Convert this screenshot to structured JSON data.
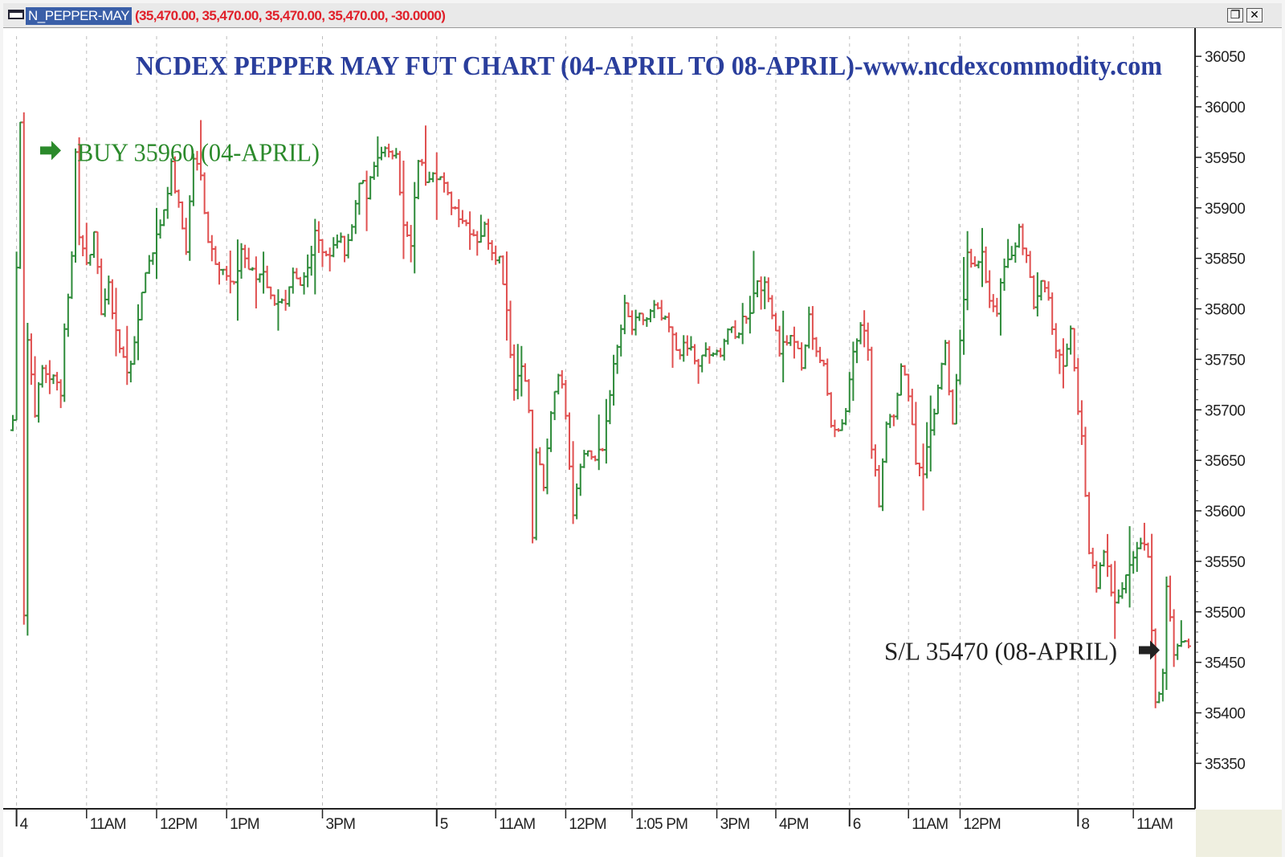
{
  "window": {
    "symbol": "N_PEPPER-MAY",
    "quote": "(35,470.00, 35,470.00, 35,470.00, 35,470.00, -30.0000)"
  },
  "colors": {
    "up": "#2e8b3a",
    "down": "#e05050",
    "title": "#2a3e9c",
    "buy": "#2b8a2b",
    "sl": "#222222",
    "grid": "#bdbdbd"
  },
  "chart_data": {
    "type": "bar",
    "title": "NCDEX PEPPER MAY FUT CHART (04-APRIL TO 08-APRIL)-www.ncdexcommodity.com",
    "y_ticks": [
      36050,
      36000,
      35950,
      35900,
      35850,
      35800,
      35750,
      35700,
      35650,
      35600,
      35550,
      35500,
      35450,
      35400,
      35350
    ],
    "ylim": [
      35305,
      36070
    ],
    "bar_count": 320,
    "x_ticks": [
      {
        "label": "4",
        "bar": 1,
        "day_sep": true
      },
      {
        "label": "11AM",
        "bar": 20,
        "day_sep": false
      },
      {
        "label": "12PM",
        "bar": 39,
        "day_sep": false
      },
      {
        "label": "1PM",
        "bar": 58,
        "day_sep": false
      },
      {
        "label": "3PM",
        "bar": 84,
        "day_sep": false
      },
      {
        "label": "5",
        "bar": 115,
        "day_sep": true
      },
      {
        "label": "11AM",
        "bar": 131,
        "day_sep": false
      },
      {
        "label": "12PM",
        "bar": 150,
        "day_sep": false
      },
      {
        "label": "1:05 PM",
        "bar": 168,
        "day_sep": false
      },
      {
        "label": "3PM",
        "bar": 191,
        "day_sep": false
      },
      {
        "label": "4PM",
        "bar": 207,
        "day_sep": false
      },
      {
        "label": "6",
        "bar": 227,
        "day_sep": true
      },
      {
        "label": "11AM",
        "bar": 243,
        "day_sep": false
      },
      {
        "label": "12PM",
        "bar": 257,
        "day_sep": false
      },
      {
        "label": "8",
        "bar": 289,
        "day_sep": true
      },
      {
        "label": "11AM",
        "bar": 304,
        "day_sep": false
      }
    ],
    "grid": true,
    "annotations": [
      {
        "text": "BUY 35960 (04-APRIL)",
        "price": 35960,
        "arrow": "right",
        "placement": "top-left"
      },
      {
        "text": "S/L 35470 (08-APRIL)",
        "price": 35470,
        "arrow": "right",
        "placement": "bottom-right"
      }
    ],
    "anchors": [
      [
        0,
        35690
      ],
      [
        2,
        35990
      ],
      [
        3,
        35500
      ],
      [
        4,
        35770
      ],
      [
        6,
        35700
      ],
      [
        8,
        35740
      ],
      [
        11,
        35730
      ],
      [
        13,
        35720
      ],
      [
        14,
        35780
      ],
      [
        16,
        35850
      ],
      [
        17,
        35960
      ],
      [
        18,
        35870
      ],
      [
        20,
        35850
      ],
      [
        22,
        35870
      ],
      [
        24,
        35800
      ],
      [
        26,
        35820
      ],
      [
        29,
        35760
      ],
      [
        31,
        35740
      ],
      [
        33,
        35760
      ],
      [
        35,
        35820
      ],
      [
        37,
        35850
      ],
      [
        39,
        35870
      ],
      [
        41,
        35900
      ],
      [
        43,
        35940
      ],
      [
        45,
        35900
      ],
      [
        47,
        35860
      ],
      [
        49,
        35950
      ],
      [
        51,
        35930
      ],
      [
        53,
        35870
      ],
      [
        55,
        35850
      ],
      [
        57,
        35840
      ],
      [
        58,
        35830
      ],
      [
        60,
        35820
      ],
      [
        62,
        35860
      ],
      [
        64,
        35840
      ],
      [
        66,
        35830
      ],
      [
        68,
        35840
      ],
      [
        70,
        35810
      ],
      [
        72,
        35810
      ],
      [
        74,
        35800
      ],
      [
        76,
        35830
      ],
      [
        78,
        35820
      ],
      [
        80,
        35840
      ],
      [
        82,
        35880
      ],
      [
        84,
        35860
      ],
      [
        86,
        35850
      ],
      [
        88,
        35870
      ],
      [
        90,
        35860
      ],
      [
        92,
        35880
      ],
      [
        94,
        35930
      ],
      [
        96,
        35910
      ],
      [
        98,
        35940
      ],
      [
        100,
        35960
      ],
      [
        102,
        35950
      ],
      [
        104,
        35960
      ],
      [
        106,
        35880
      ],
      [
        108,
        35860
      ],
      [
        110,
        35950
      ],
      [
        112,
        35930
      ],
      [
        114,
        35940
      ],
      [
        116,
        35930
      ],
      [
        118,
        35910
      ],
      [
        120,
        35900
      ],
      [
        122,
        35890
      ],
      [
        124,
        35880
      ],
      [
        126,
        35870
      ],
      [
        128,
        35880
      ],
      [
        130,
        35860
      ],
      [
        132,
        35850
      ],
      [
        133,
        35830
      ],
      [
        134,
        35800
      ],
      [
        136,
        35720
      ],
      [
        138,
        35750
      ],
      [
        140,
        35700
      ],
      [
        141,
        35570
      ],
      [
        142,
        35660
      ],
      [
        144,
        35620
      ],
      [
        146,
        35700
      ],
      [
        148,
        35740
      ],
      [
        150,
        35700
      ],
      [
        152,
        35600
      ],
      [
        154,
        35650
      ],
      [
        156,
        35660
      ],
      [
        158,
        35650
      ],
      [
        160,
        35660
      ],
      [
        162,
        35720
      ],
      [
        164,
        35760
      ],
      [
        166,
        35800
      ],
      [
        168,
        35780
      ],
      [
        170,
        35790
      ],
      [
        172,
        35790
      ],
      [
        174,
        35800
      ],
      [
        176,
        35790
      ],
      [
        178,
        35780
      ],
      [
        180,
        35760
      ],
      [
        182,
        35760
      ],
      [
        184,
        35760
      ],
      [
        186,
        35740
      ],
      [
        188,
        35760
      ],
      [
        190,
        35750
      ],
      [
        192,
        35760
      ],
      [
        194,
        35780
      ],
      [
        196,
        35770
      ],
      [
        198,
        35790
      ],
      [
        200,
        35800
      ],
      [
        202,
        35830
      ],
      [
        204,
        35820
      ],
      [
        206,
        35800
      ],
      [
        208,
        35760
      ],
      [
        210,
        35770
      ],
      [
        212,
        35770
      ],
      [
        214,
        35740
      ],
      [
        216,
        35790
      ],
      [
        218,
        35760
      ],
      [
        220,
        35740
      ],
      [
        222,
        35690
      ],
      [
        224,
        35680
      ],
      [
        226,
        35700
      ],
      [
        228,
        35760
      ],
      [
        230,
        35790
      ],
      [
        232,
        35760
      ],
      [
        233,
        35660
      ],
      [
        235,
        35610
      ],
      [
        237,
        35690
      ],
      [
        239,
        35700
      ],
      [
        241,
        35740
      ],
      [
        243,
        35720
      ],
      [
        245,
        35650
      ],
      [
        247,
        35640
      ],
      [
        249,
        35680
      ],
      [
        251,
        35720
      ],
      [
        253,
        35760
      ],
      [
        255,
        35680
      ],
      [
        257,
        35770
      ],
      [
        259,
        35860
      ],
      [
        261,
        35840
      ],
      [
        263,
        35850
      ],
      [
        265,
        35810
      ],
      [
        267,
        35800
      ],
      [
        269,
        35840
      ],
      [
        271,
        35850
      ],
      [
        273,
        35880
      ],
      [
        275,
        35850
      ],
      [
        277,
        35800
      ],
      [
        279,
        35830
      ],
      [
        281,
        35810
      ],
      [
        283,
        35760
      ],
      [
        285,
        35740
      ],
      [
        287,
        35780
      ],
      [
        289,
        35700
      ],
      [
        290,
        35680
      ],
      [
        291,
        35620
      ],
      [
        292,
        35560
      ],
      [
        294,
        35520
      ],
      [
        296,
        35560
      ],
      [
        298,
        35520
      ],
      [
        300,
        35510
      ],
      [
        302,
        35540
      ],
      [
        304,
        35560
      ],
      [
        306,
        35570
      ],
      [
        308,
        35550
      ],
      [
        309,
        35480
      ],
      [
        310,
        35410
      ],
      [
        312,
        35440
      ],
      [
        313,
        35530
      ],
      [
        315,
        35460
      ],
      [
        316,
        35470
      ],
      [
        319,
        35470
      ]
    ]
  }
}
